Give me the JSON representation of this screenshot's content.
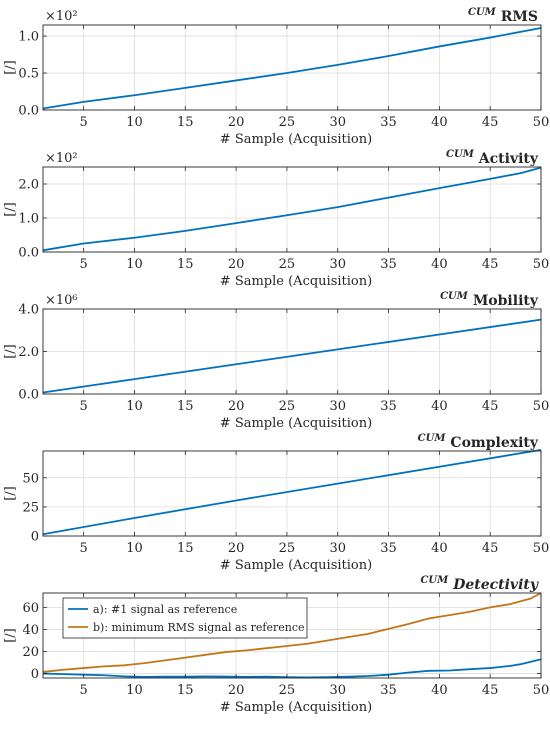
{
  "chart_data": [
    {
      "type": "line",
      "title_sup": "CUM",
      "title": "RMS",
      "title_italic": false,
      "xlabel": "# Sample (Acquisition)",
      "ylabel": "[/]",
      "xlim": [
        1,
        50
      ],
      "ylim": [
        0,
        1.15
      ],
      "y_exponent_label": "×10²",
      "xticks": [
        5,
        10,
        15,
        20,
        25,
        30,
        35,
        40,
        45,
        50
      ],
      "yticks": [
        0,
        0.5,
        1
      ],
      "ytick_labels": [
        "0.0",
        "0.5",
        "1.0"
      ],
      "grid": true,
      "series": [
        {
          "color": "#0072BD",
          "x": [
            1,
            5,
            10,
            15,
            20,
            25,
            30,
            35,
            40,
            45,
            50
          ],
          "y": [
            0.02,
            0.11,
            0.2,
            0.3,
            0.4,
            0.5,
            0.61,
            0.73,
            0.86,
            0.98,
            1.11
          ]
        }
      ]
    },
    {
      "type": "line",
      "title_sup": "CUM",
      "title": "Activity",
      "title_italic": false,
      "xlabel": "# Sample (Acquisition)",
      "ylabel": "[/]",
      "xlim": [
        1,
        50
      ],
      "ylim": [
        0,
        2.5
      ],
      "y_exponent_label": "×10²",
      "xticks": [
        5,
        10,
        15,
        20,
        25,
        30,
        35,
        40,
        45,
        50
      ],
      "yticks": [
        0,
        1,
        2
      ],
      "ytick_labels": [
        "0.0",
        "1.0",
        "2.0"
      ],
      "grid": true,
      "series": [
        {
          "color": "#0072BD",
          "x": [
            1,
            5,
            10,
            15,
            20,
            25,
            30,
            35,
            40,
            45,
            48,
            50
          ],
          "y": [
            0.05,
            0.25,
            0.42,
            0.62,
            0.85,
            1.08,
            1.32,
            1.6,
            1.88,
            2.15,
            2.32,
            2.48
          ]
        }
      ]
    },
    {
      "type": "line",
      "title_sup": "CUM",
      "title": "Mobility",
      "title_italic": false,
      "xlabel": "# Sample (Acquisition)",
      "ylabel": "[/]",
      "xlim": [
        1,
        50
      ],
      "ylim": [
        0,
        4
      ],
      "y_exponent_label": "×10⁶",
      "xticks": [
        5,
        10,
        15,
        20,
        25,
        30,
        35,
        40,
        45,
        50
      ],
      "yticks": [
        0,
        2,
        4
      ],
      "ytick_labels": [
        "0.0",
        "2.0",
        "4.0"
      ],
      "grid": true,
      "series": [
        {
          "color": "#0072BD",
          "x": [
            1,
            10,
            20,
            30,
            40,
            50
          ],
          "y": [
            0.07,
            0.7,
            1.4,
            2.1,
            2.8,
            3.5
          ]
        }
      ]
    },
    {
      "type": "line",
      "title_sup": "CUM",
      "title": "Complexity",
      "title_italic": false,
      "xlabel": "# Sample (Acquisition)",
      "ylabel": "[/]",
      "xlim": [
        1,
        50
      ],
      "ylim": [
        0,
        73
      ],
      "y_exponent_label": "",
      "xticks": [
        5,
        10,
        15,
        20,
        25,
        30,
        35,
        40,
        45,
        50
      ],
      "yticks": [
        0,
        25,
        50
      ],
      "ytick_labels": [
        "0",
        "25",
        "50"
      ],
      "grid": true,
      "series": [
        {
          "color": "#0072BD",
          "x": [
            1,
            10,
            20,
            30,
            40,
            50
          ],
          "y": [
            1.5,
            15.5,
            30.5,
            45,
            59.5,
            74
          ]
        }
      ]
    },
    {
      "type": "line",
      "title_sup": "CUM",
      "title": "Detectivity",
      "title_italic": true,
      "xlabel": "# Sample (Acquisition)",
      "ylabel": "[/]",
      "xlim": [
        1,
        50
      ],
      "ylim": [
        -4,
        73
      ],
      "y_exponent_label": "",
      "xticks": [
        5,
        10,
        15,
        20,
        25,
        30,
        35,
        40,
        45,
        50
      ],
      "yticks": [
        0,
        20,
        40,
        60
      ],
      "ytick_labels": [
        "0",
        "20",
        "40",
        "60"
      ],
      "grid": true,
      "legend": "top-left",
      "series": [
        {
          "name": "a): #1 signal as reference",
          "color": "#0072BD",
          "x": [
            1,
            3,
            5,
            7,
            9,
            11,
            13,
            15,
            17,
            19,
            21,
            23,
            25,
            27,
            29,
            31,
            33,
            35,
            37,
            39,
            41,
            43,
            45,
            47,
            48,
            50
          ],
          "y": [
            0,
            -0.5,
            -1,
            -1.5,
            -2.5,
            -3,
            -2.8,
            -2.8,
            -2.6,
            -2.7,
            -3,
            -2.8,
            -3.2,
            -3.5,
            -3.2,
            -2.8,
            -2.2,
            -1,
            1,
            2.5,
            2.8,
            4,
            5,
            7,
            8.5,
            13
          ]
        },
        {
          "name": "b): minimum RMS signal as reference",
          "color": "#C0771A",
          "x": [
            1,
            3,
            5,
            7,
            9,
            11,
            13,
            15,
            17,
            19,
            21,
            23,
            25,
            27,
            29,
            31,
            33,
            35,
            37,
            39,
            41,
            43,
            45,
            47,
            49,
            50
          ],
          "y": [
            1.5,
            3.5,
            5,
            6.5,
            7.5,
            9.5,
            12,
            14.5,
            17,
            19.5,
            21,
            23,
            25,
            27,
            30,
            33,
            36,
            40.5,
            45,
            50,
            53,
            56,
            60,
            63,
            68,
            73
          ]
        }
      ]
    }
  ]
}
